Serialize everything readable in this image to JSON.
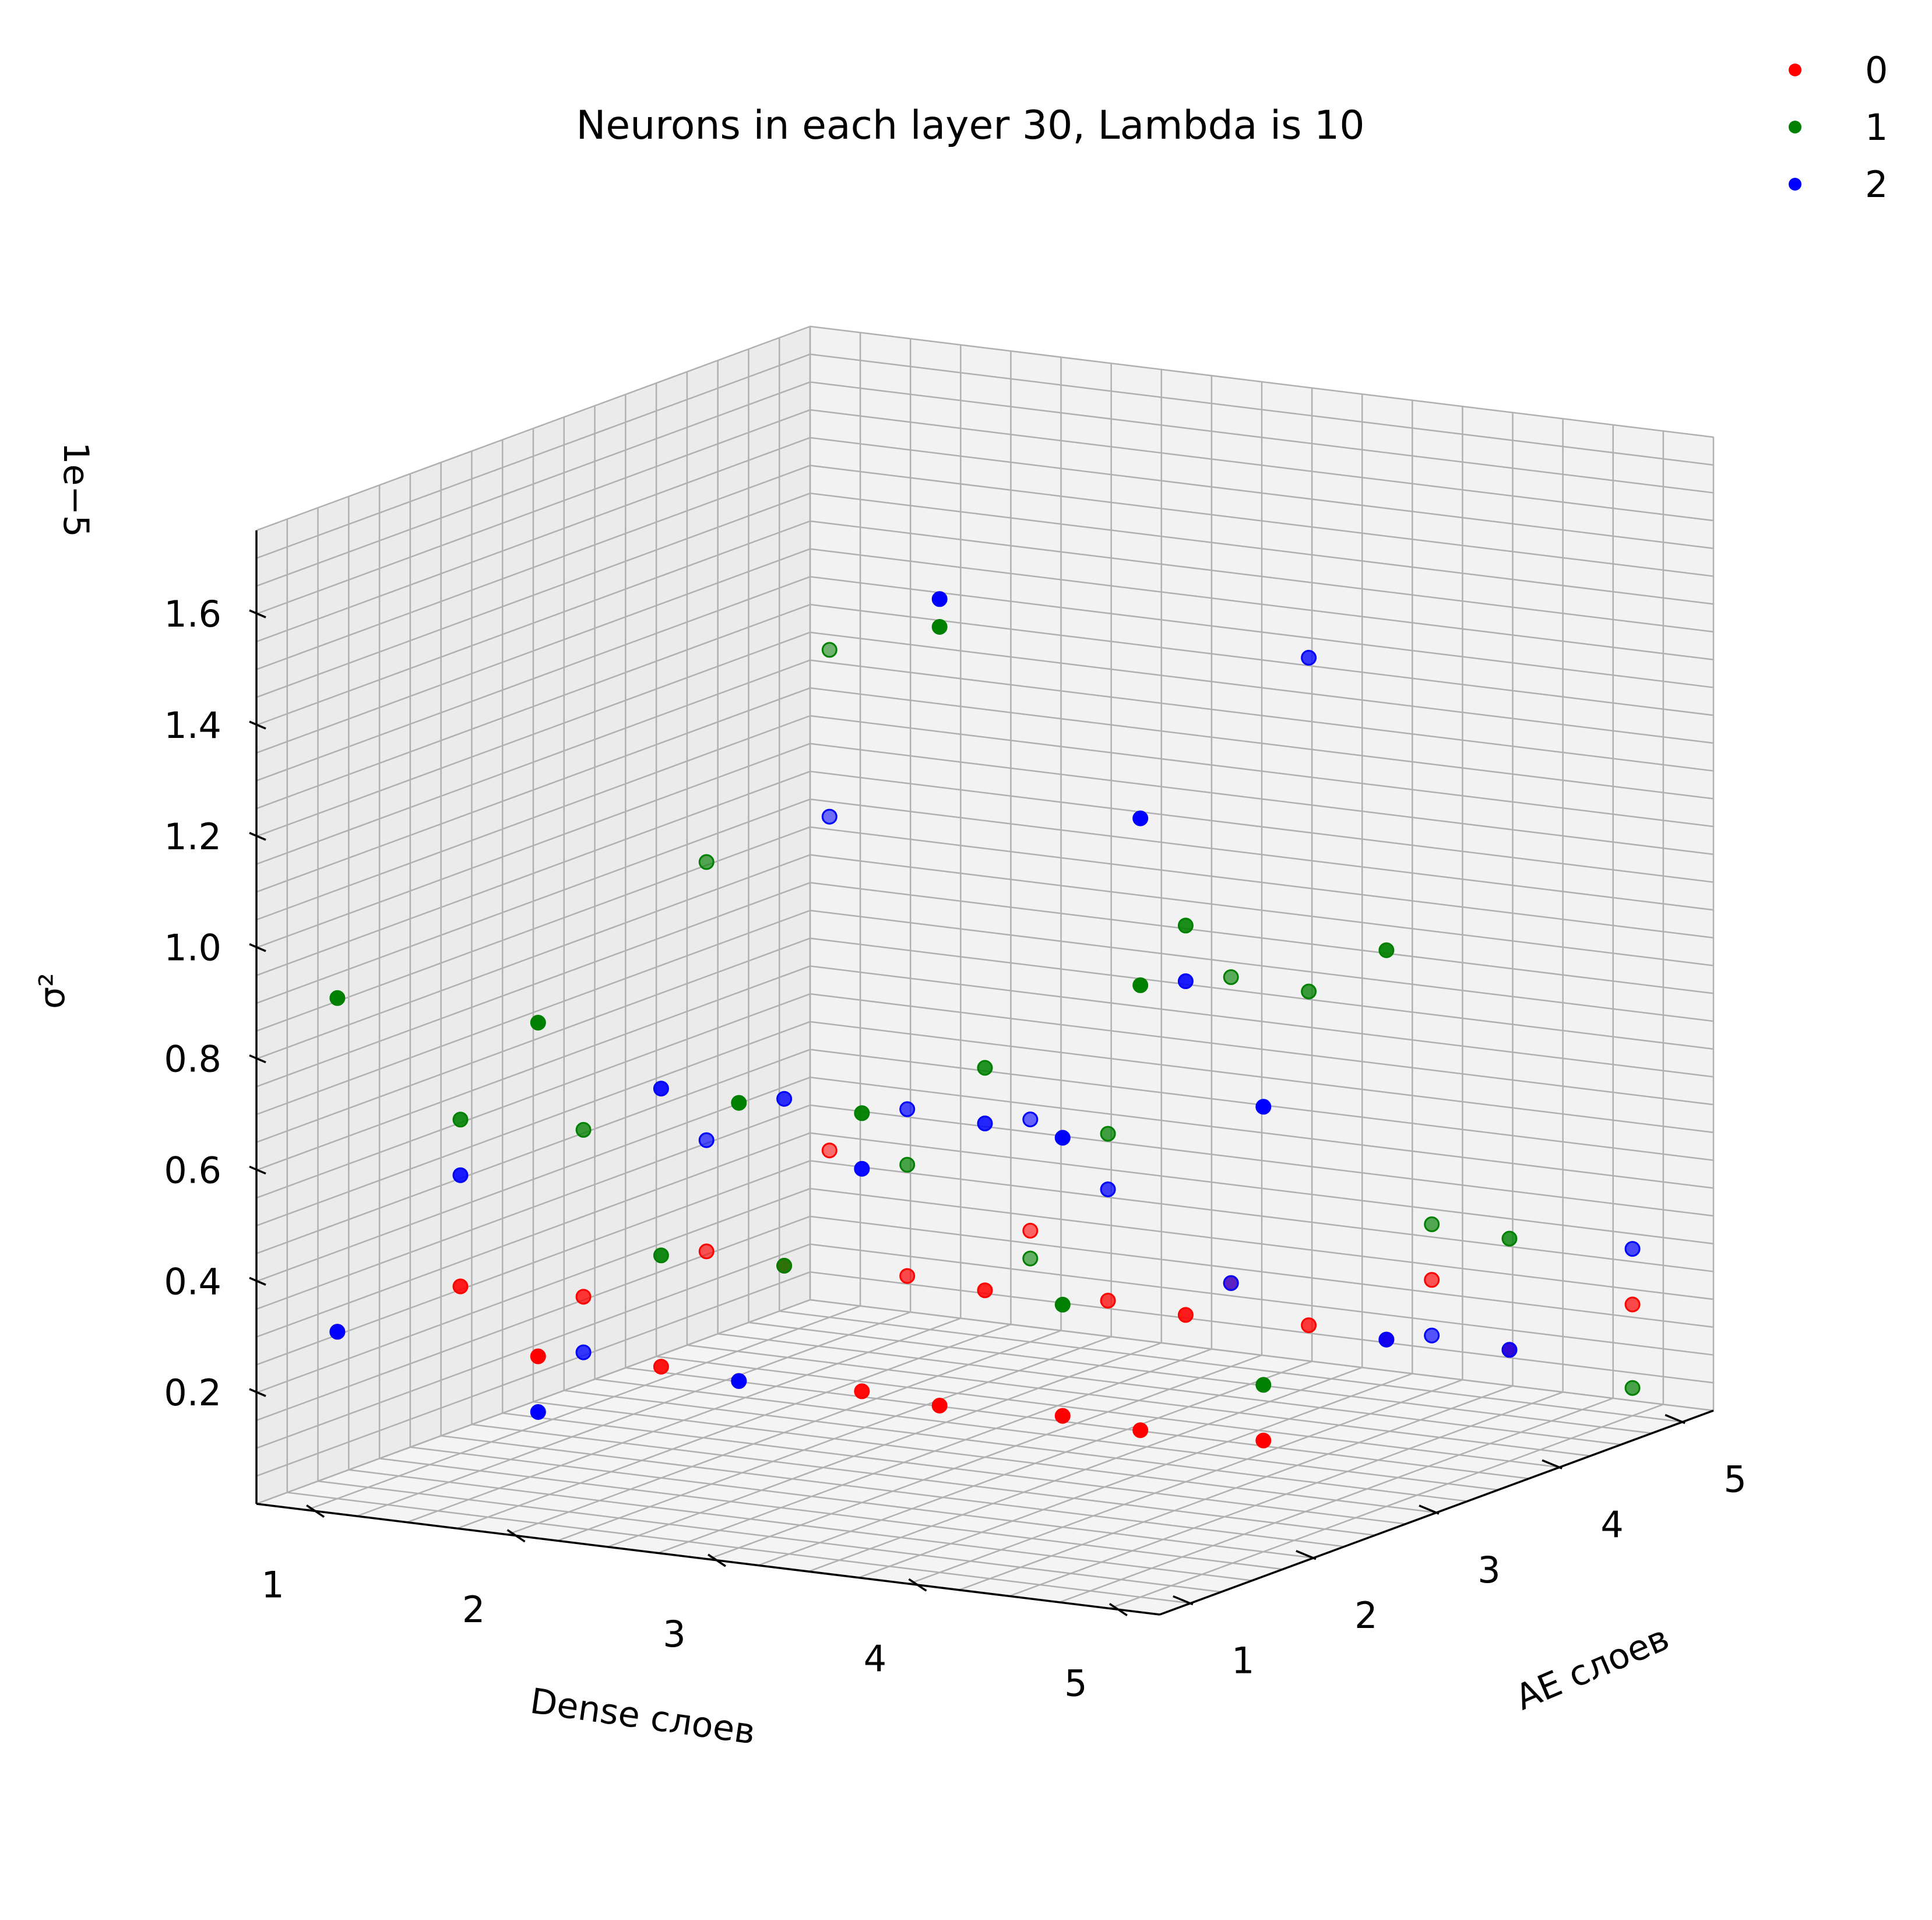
{
  "chart_data": {
    "type": "scatter3d",
    "title": "Neurons in each layer 30, Lambda is 10",
    "xlabel": "Dense слоев",
    "ylabel": "AE слоев",
    "zlabel": "σ²",
    "z_offset_label": "1e−5",
    "x_ticks": [
      "1",
      "2",
      "3",
      "4",
      "5"
    ],
    "y_ticks": [
      "1",
      "2",
      "3",
      "4",
      "5"
    ],
    "z_ticks": [
      "0.2",
      "0.4",
      "0.6",
      "0.8",
      "1.0",
      "1.2",
      "1.4",
      "1.6"
    ],
    "xlim": [
      0.75,
      5.25
    ],
    "ylim": [
      0.75,
      5.25
    ],
    "zlim": [
      0.0,
      1.75
    ],
    "grid": true,
    "legend_position": "top-right",
    "series": [
      {
        "name": "0",
        "color": "#ff0000",
        "points": [
          [
            1,
            5,
            0.3
          ],
          [
            1,
            4,
            0.2
          ],
          [
            1,
            3,
            0.2
          ],
          [
            1,
            2,
            0.3
          ],
          [
            1,
            1,
            0.3
          ],
          [
            2,
            5,
            0.2
          ],
          [
            2,
            4,
            0.2
          ],
          [
            2,
            3,
            0.3
          ],
          [
            2,
            2,
            0.2
          ],
          [
            2,
            1,
            0.3
          ],
          [
            3,
            5,
            0.15
          ],
          [
            3,
            4,
            0.2
          ],
          [
            3,
            3,
            0.3
          ],
          [
            3,
            2,
            0.2
          ],
          [
            3,
            1,
            0.3
          ],
          [
            4,
            5,
            0.2
          ],
          [
            4,
            4,
            0.2
          ],
          [
            4,
            3,
            0.3
          ],
          [
            4,
            2,
            0.2
          ],
          [
            4,
            1,
            0.3
          ],
          [
            5,
            5,
            0.2
          ],
          [
            5,
            4,
            0.2
          ],
          [
            5,
            3,
            0.3
          ],
          [
            5,
            2,
            0.2
          ],
          [
            5,
            1,
            0.3
          ]
        ]
      },
      {
        "name": "1",
        "color": "#008000",
        "points": [
          [
            1,
            5,
            1.2
          ],
          [
            1,
            4,
            0.9
          ],
          [
            1,
            3,
            0.5
          ],
          [
            1,
            2,
            0.6
          ],
          [
            1,
            1,
            0.9
          ],
          [
            2,
            5,
            0.15
          ],
          [
            2,
            4,
            0.4
          ],
          [
            2,
            3,
            0.3
          ],
          [
            2,
            2,
            0.4
          ],
          [
            2,
            1,
            0.9
          ],
          [
            3,
            5,
            0.7
          ],
          [
            3,
            4,
            0.5
          ],
          [
            3,
            3,
            0.7
          ],
          [
            3,
            2,
            0.7
          ],
          [
            3,
            1,
            0.8
          ],
          [
            4,
            5,
            0.3
          ],
          [
            4,
            4,
            0.8
          ],
          [
            4,
            3,
            1.0
          ],
          [
            4,
            2,
            0.4
          ],
          [
            4,
            1,
            1.7
          ],
          [
            5,
            5,
            0.05
          ],
          [
            5,
            4,
            0.4
          ],
          [
            5,
            3,
            1.0
          ],
          [
            5,
            2,
            0.3
          ],
          [
            5,
            1,
            1.1
          ]
        ]
      },
      {
        "name": "2",
        "color": "#0000ff",
        "points": [
          [
            1,
            5,
            0.9
          ],
          [
            1,
            4,
            0.4
          ],
          [
            1,
            3,
            0.1
          ],
          [
            1,
            2,
            0.5
          ],
          [
            1,
            1,
            0.3
          ],
          [
            2,
            5,
            0.4
          ],
          [
            2,
            4,
            0.5
          ],
          [
            2,
            3,
            0.6
          ],
          [
            2,
            2,
            0.7
          ],
          [
            2,
            1,
            0.2
          ],
          [
            3,
            5,
            0.15
          ],
          [
            3,
            4,
            0.4
          ],
          [
            3,
            3,
            0.6
          ],
          [
            3,
            2,
            0.6
          ],
          [
            3,
            1,
            0.3
          ],
          [
            4,
            5,
            0.1
          ],
          [
            4,
            4,
            1.4
          ],
          [
            4,
            3,
            0.9
          ],
          [
            4,
            2,
            0.7
          ],
          [
            4,
            1,
            1.75
          ],
          [
            5,
            5,
            0.3
          ],
          [
            5,
            4,
            0.2
          ],
          [
            5,
            3,
            0.3
          ],
          [
            5,
            2,
            0.8
          ],
          [
            5,
            1,
            1.4
          ]
        ]
      }
    ]
  }
}
